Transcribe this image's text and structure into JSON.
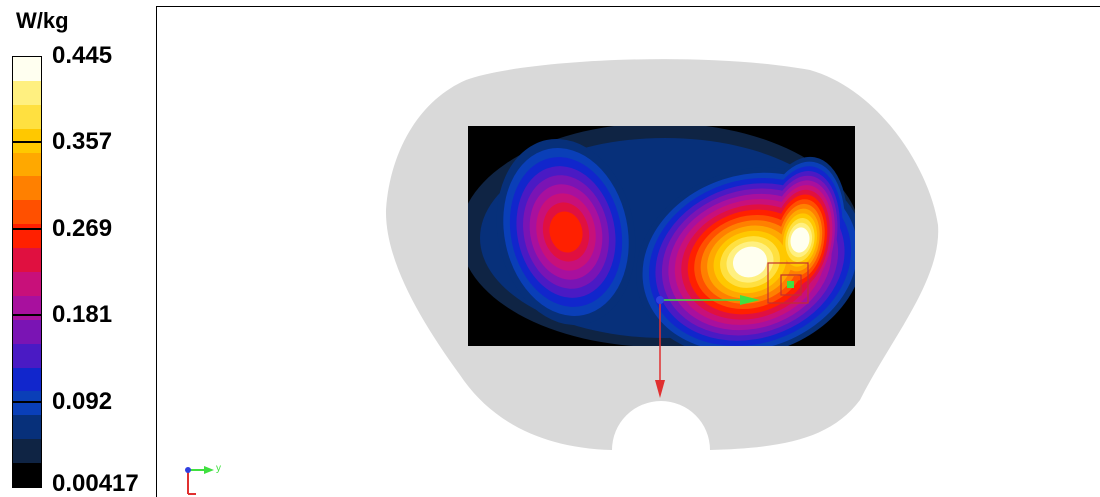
{
  "chart_data": {
    "type": "heatmap",
    "unit_label": "W/kg",
    "min": 0.00417,
    "max": 0.445,
    "tick_labels": [
      "0.445",
      "0.357",
      "0.269",
      "0.181",
      "0.092",
      "0.00417"
    ],
    "tick_values": [
      0.445,
      0.357,
      0.269,
      0.181,
      0.092,
      0.00417
    ],
    "colormap": [
      "#000000",
      "#0f2444",
      "#07307a",
      "#0a3fb8",
      "#1126cc",
      "#4a1ac4",
      "#7a14b4",
      "#a8109e",
      "#c8107a",
      "#e01040",
      "#ff2000",
      "#ff5000",
      "#ff8000",
      "#ffa800",
      "#ffc800",
      "#ffe040",
      "#fff080",
      "#fffff0"
    ],
    "hotspots": [
      {
        "name": "left-lobe",
        "peak": 0.27
      },
      {
        "name": "right-lobe",
        "peak": 0.445
      }
    ],
    "axis_triad": {
      "y_label": "y"
    }
  },
  "colors": {
    "phantom": "#d9d9d9",
    "background": "#000000",
    "axis_red": "#e03030",
    "axis_green": "#40e040",
    "axis_blue": "#3040e0"
  }
}
